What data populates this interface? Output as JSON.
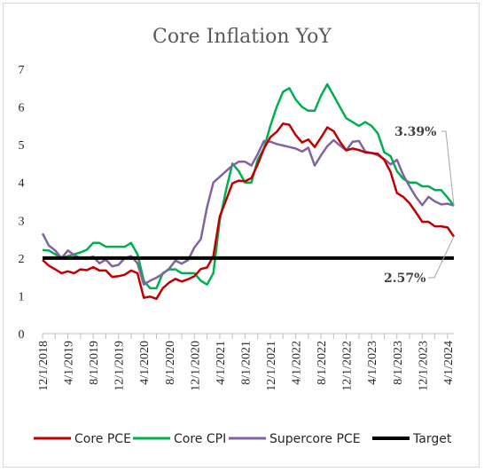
{
  "chart_data": {
    "type": "line",
    "title": "Core Inflation YoY",
    "xlabel": "",
    "ylabel": "",
    "ylim": [
      0,
      7
    ],
    "y_ticks": [
      "0",
      "1",
      "2",
      "3",
      "4",
      "5",
      "6",
      "7"
    ],
    "x_tick_labels": [
      "12/1/2018",
      "4/1/2019",
      "8/1/2019",
      "12/1/2019",
      "4/1/2020",
      "8/1/2020",
      "12/1/2020",
      "4/1/2021",
      "8/1/2021",
      "12/1/2021",
      "4/1/2022",
      "8/1/2022",
      "12/1/2022",
      "4/1/2023",
      "8/1/2023",
      "12/1/2023",
      "4/1/2024"
    ],
    "x": [
      "2018-12",
      "2019-01",
      "2019-02",
      "2019-03",
      "2019-04",
      "2019-05",
      "2019-06",
      "2019-07",
      "2019-08",
      "2019-09",
      "2019-10",
      "2019-11",
      "2019-12",
      "2020-01",
      "2020-02",
      "2020-03",
      "2020-04",
      "2020-05",
      "2020-06",
      "2020-07",
      "2020-08",
      "2020-09",
      "2020-10",
      "2020-11",
      "2020-12",
      "2021-01",
      "2021-02",
      "2021-03",
      "2021-04",
      "2021-05",
      "2021-06",
      "2021-07",
      "2021-08",
      "2021-09",
      "2021-10",
      "2021-11",
      "2021-12",
      "2022-01",
      "2022-02",
      "2022-03",
      "2022-04",
      "2022-05",
      "2022-06",
      "2022-07",
      "2022-08",
      "2022-09",
      "2022-10",
      "2022-11",
      "2022-12",
      "2023-01",
      "2023-02",
      "2023-03",
      "2023-04",
      "2023-05",
      "2023-06",
      "2023-07",
      "2023-08",
      "2023-09",
      "2023-10",
      "2023-11",
      "2023-12",
      "2024-01",
      "2024-02",
      "2024-03",
      "2024-04",
      "2024-05"
    ],
    "series": [
      {
        "name": "Core PCE",
        "color": "#c00000",
        "values": [
          1.95,
          1.8,
          1.7,
          1.6,
          1.65,
          1.6,
          1.7,
          1.68,
          1.76,
          1.67,
          1.67,
          1.5,
          1.52,
          1.56,
          1.67,
          1.6,
          0.95,
          0.98,
          0.92,
          1.2,
          1.35,
          1.45,
          1.38,
          1.44,
          1.52,
          1.71,
          1.75,
          2.05,
          3.1,
          3.53,
          3.98,
          4.05,
          4.03,
          4.12,
          4.48,
          4.9,
          5.2,
          5.34,
          5.56,
          5.53,
          5.26,
          5.06,
          5.14,
          4.94,
          5.19,
          5.46,
          5.36,
          5.08,
          4.85,
          4.9,
          4.86,
          4.8,
          4.78,
          4.76,
          4.6,
          4.28,
          3.72,
          3.62,
          3.45,
          3.21,
          2.96,
          2.96,
          2.84,
          2.84,
          2.81,
          2.57
        ]
      },
      {
        "name": "Core CPI",
        "color": "#00b050",
        "values": [
          2.21,
          2.2,
          2.1,
          2.0,
          2.05,
          2.1,
          2.15,
          2.22,
          2.4,
          2.4,
          2.3,
          2.3,
          2.3,
          2.3,
          2.4,
          2.1,
          1.4,
          1.2,
          1.2,
          1.6,
          1.7,
          1.7,
          1.6,
          1.6,
          1.6,
          1.4,
          1.3,
          1.6,
          3.0,
          3.8,
          4.5,
          4.3,
          4.0,
          4.0,
          4.6,
          4.9,
          5.5,
          6.0,
          6.4,
          6.5,
          6.2,
          6.0,
          5.9,
          5.9,
          6.3,
          6.6,
          6.3,
          6.0,
          5.7,
          5.6,
          5.5,
          5.6,
          5.5,
          5.3,
          4.8,
          4.7,
          4.3,
          4.1,
          4.0,
          4.0,
          3.9,
          3.9,
          3.8,
          3.8,
          3.6,
          3.39
        ]
      },
      {
        "name": "Supercore PCE",
        "color": "#8064a2",
        "values": [
          2.65,
          2.33,
          2.2,
          2.0,
          2.2,
          2.08,
          2.0,
          1.98,
          2.04,
          1.86,
          1.96,
          1.78,
          1.82,
          2.0,
          2.05,
          1.86,
          1.3,
          1.4,
          1.48,
          1.58,
          1.72,
          1.93,
          1.85,
          1.95,
          2.28,
          2.5,
          3.35,
          4.0,
          4.15,
          4.3,
          4.45,
          4.55,
          4.55,
          4.45,
          4.75,
          5.1,
          5.08,
          5.02,
          4.98,
          4.94,
          4.9,
          4.82,
          4.92,
          4.45,
          4.72,
          4.96,
          5.12,
          4.98,
          4.85,
          5.08,
          5.1,
          4.82,
          4.78,
          4.72,
          4.62,
          4.48,
          4.6,
          4.2,
          3.9,
          3.62,
          3.4,
          3.62,
          3.5,
          3.42,
          3.44,
          3.39
        ]
      },
      {
        "name": "Target",
        "color": "#000000",
        "values": [
          2,
          2,
          2,
          2,
          2,
          2,
          2,
          2,
          2,
          2,
          2,
          2,
          2,
          2,
          2,
          2,
          2,
          2,
          2,
          2,
          2,
          2,
          2,
          2,
          2,
          2,
          2,
          2,
          2,
          2,
          2,
          2,
          2,
          2,
          2,
          2,
          2,
          2,
          2,
          2,
          2,
          2,
          2,
          2,
          2,
          2,
          2,
          2,
          2,
          2,
          2,
          2,
          2,
          2,
          2,
          2,
          2,
          2,
          2,
          2,
          2,
          2,
          2,
          2,
          2,
          2
        ]
      }
    ],
    "annotations": [
      {
        "text": "3.39%",
        "series": "Core CPI",
        "value": 3.39
      },
      {
        "text": "2.57%",
        "series": "Core PCE",
        "value": 2.57
      }
    ],
    "legend_position": "bottom",
    "grid": false
  }
}
